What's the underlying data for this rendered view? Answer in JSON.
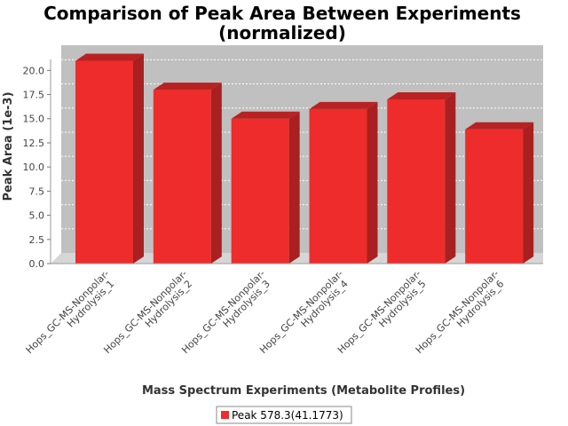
{
  "colors": {
    "bar_front": "#ee2c2c",
    "bar_top": "#b82222",
    "bar_side": "#a82020",
    "plot_back": "#c0c0c0",
    "plot_floor": "#d6d6d6",
    "gridline": "#ffffff"
  },
  "chart_data": {
    "type": "bar",
    "title_line1": "Comparison of Peak Area Between Experiments",
    "title_line2": "(normalized)",
    "xlabel": "Mass Spectrum Experiments (Metabolite Profiles)",
    "ylabel": "Peak Area (1e-3)",
    "ylim": [
      0,
      21.5
    ],
    "yticks": [
      "0.0",
      "2.5",
      "5.0",
      "7.5",
      "10.0",
      "12.5",
      "15.0",
      "17.5",
      "20.0"
    ],
    "grid": true,
    "legend_position": "bottom",
    "categories": [
      {
        "line1": "Hops_GC-MS-Nonpolar-",
        "line2": "Hydrolysis_1"
      },
      {
        "line1": "Hops_GC-MS-Nonpolar-",
        "line2": "Hydrolysis_2"
      },
      {
        "line1": "Hops_GC-MS-Nonpolar-",
        "line2": "Hydrolysis_3"
      },
      {
        "line1": "Hops_GC-MS-Nonpolar-",
        "line2": "Hydrolysis_4"
      },
      {
        "line1": "Hops_GC-MS-Nonpolar-",
        "line2": "Hydrolysis_5"
      },
      {
        "line1": "Hops_GC-MS-Nonpolar-",
        "line2": "Hydrolysis_6"
      }
    ],
    "series": [
      {
        "name": "Peak 578.3(41.1773)",
        "values": [
          21.0,
          18.0,
          15.0,
          16.0,
          17.0,
          13.9
        ]
      }
    ]
  }
}
